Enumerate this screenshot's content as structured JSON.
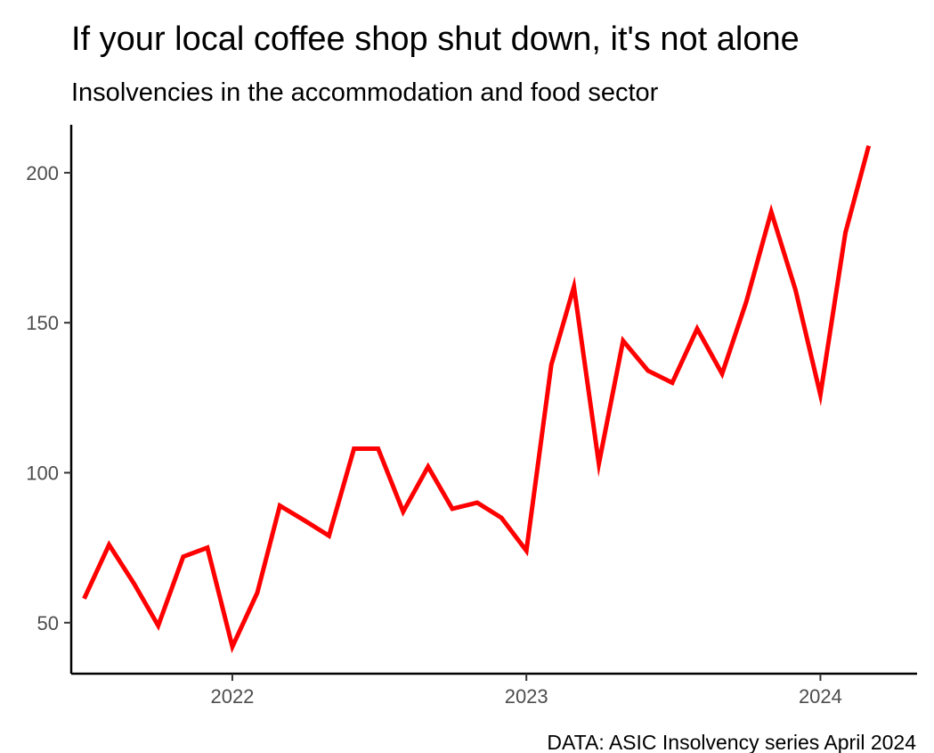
{
  "chart_data": {
    "type": "line",
    "title": "If your local coffee shop shut down, it's not alone",
    "subtitle": "Insolvencies in the accommodation and food sector",
    "caption": "DATA: ASIC Insolvency series April 2024",
    "xlabel": "",
    "ylabel": "",
    "x_ticks": [
      "2022",
      "2023",
      "2024"
    ],
    "y_ticks": [
      50,
      100,
      150,
      200
    ],
    "xlim": [
      "2021-06-15",
      "2024-04-30"
    ],
    "ylim": [
      33,
      216
    ],
    "grid": false,
    "legend": "none",
    "series": [
      {
        "color": "#ff0000",
        "points": [
          {
            "x": "2021-07-01",
            "y": 58
          },
          {
            "x": "2021-08-01",
            "y": 76
          },
          {
            "x": "2021-09-01",
            "y": 63
          },
          {
            "x": "2021-10-01",
            "y": 49
          },
          {
            "x": "2021-11-01",
            "y": 72
          },
          {
            "x": "2021-12-01",
            "y": 75
          },
          {
            "x": "2022-01-01",
            "y": 42
          },
          {
            "x": "2022-02-01",
            "y": 60
          },
          {
            "x": "2022-03-01",
            "y": 89
          },
          {
            "x": "2022-04-01",
            "y": 84
          },
          {
            "x": "2022-05-01",
            "y": 79
          },
          {
            "x": "2022-06-01",
            "y": 108
          },
          {
            "x": "2022-07-01",
            "y": 108
          },
          {
            "x": "2022-08-01",
            "y": 87
          },
          {
            "x": "2022-09-01",
            "y": 102
          },
          {
            "x": "2022-10-01",
            "y": 88
          },
          {
            "x": "2022-11-01",
            "y": 90
          },
          {
            "x": "2022-12-01",
            "y": 85
          },
          {
            "x": "2023-01-01",
            "y": 74
          },
          {
            "x": "2023-02-01",
            "y": 136
          },
          {
            "x": "2023-03-01",
            "y": 162
          },
          {
            "x": "2023-04-01",
            "y": 103
          },
          {
            "x": "2023-05-01",
            "y": 144
          },
          {
            "x": "2023-06-01",
            "y": 134
          },
          {
            "x": "2023-07-01",
            "y": 130
          },
          {
            "x": "2023-08-01",
            "y": 148
          },
          {
            "x": "2023-09-01",
            "y": 133
          },
          {
            "x": "2023-10-01",
            "y": 157
          },
          {
            "x": "2023-11-01",
            "y": 187
          },
          {
            "x": "2023-12-01",
            "y": 161
          },
          {
            "x": "2024-01-01",
            "y": 126
          },
          {
            "x": "2024-02-01",
            "y": 180
          },
          {
            "x": "2024-03-01",
            "y": 209
          }
        ]
      }
    ]
  }
}
